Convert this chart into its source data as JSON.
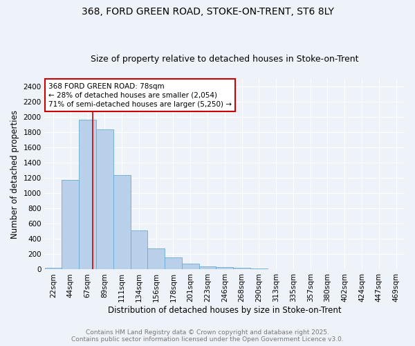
{
  "title_line1": "368, FORD GREEN ROAD, STOKE-ON-TRENT, ST6 8LY",
  "title_line2": "Size of property relative to detached houses in Stoke-on-Trent",
  "xlabel": "Distribution of detached houses by size in Stoke-on-Trent",
  "ylabel": "Number of detached properties",
  "bar_color": "#b8d0ea",
  "bar_edge_color": "#6aaad4",
  "categories": [
    "22sqm",
    "44sqm",
    "67sqm",
    "89sqm",
    "111sqm",
    "134sqm",
    "156sqm",
    "178sqm",
    "201sqm",
    "223sqm",
    "246sqm",
    "268sqm",
    "290sqm",
    "313sqm",
    "335sqm",
    "357sqm",
    "380sqm",
    "402sqm",
    "424sqm",
    "447sqm",
    "469sqm"
  ],
  "values": [
    25,
    1175,
    1960,
    1840,
    1240,
    510,
    275,
    155,
    80,
    40,
    30,
    25,
    15,
    8,
    5,
    5,
    5,
    5,
    5,
    5,
    5
  ],
  "ylim": [
    0,
    2500
  ],
  "yticks": [
    0,
    200,
    400,
    600,
    800,
    1000,
    1200,
    1400,
    1600,
    1800,
    2000,
    2200,
    2400
  ],
  "red_line_x": 2.3,
  "annotation_text": "368 FORD GREEN ROAD: 78sqm\n← 28% of detached houses are smaller (2,054)\n71% of semi-detached houses are larger (5,250) →",
  "annotation_box_color": "#ffffff",
  "annotation_box_edge_color": "#cc0000",
  "red_line_color": "#cc0000",
  "background_color": "#eef2f9",
  "grid_color": "#ffffff",
  "footer_line1": "Contains HM Land Registry data © Crown copyright and database right 2025.",
  "footer_line2": "Contains public sector information licensed under the Open Government Licence v3.0.",
  "title_fontsize": 10,
  "subtitle_fontsize": 9,
  "axis_label_fontsize": 8.5,
  "tick_fontsize": 7.5,
  "annotation_fontsize": 7.5,
  "footer_fontsize": 6.5
}
